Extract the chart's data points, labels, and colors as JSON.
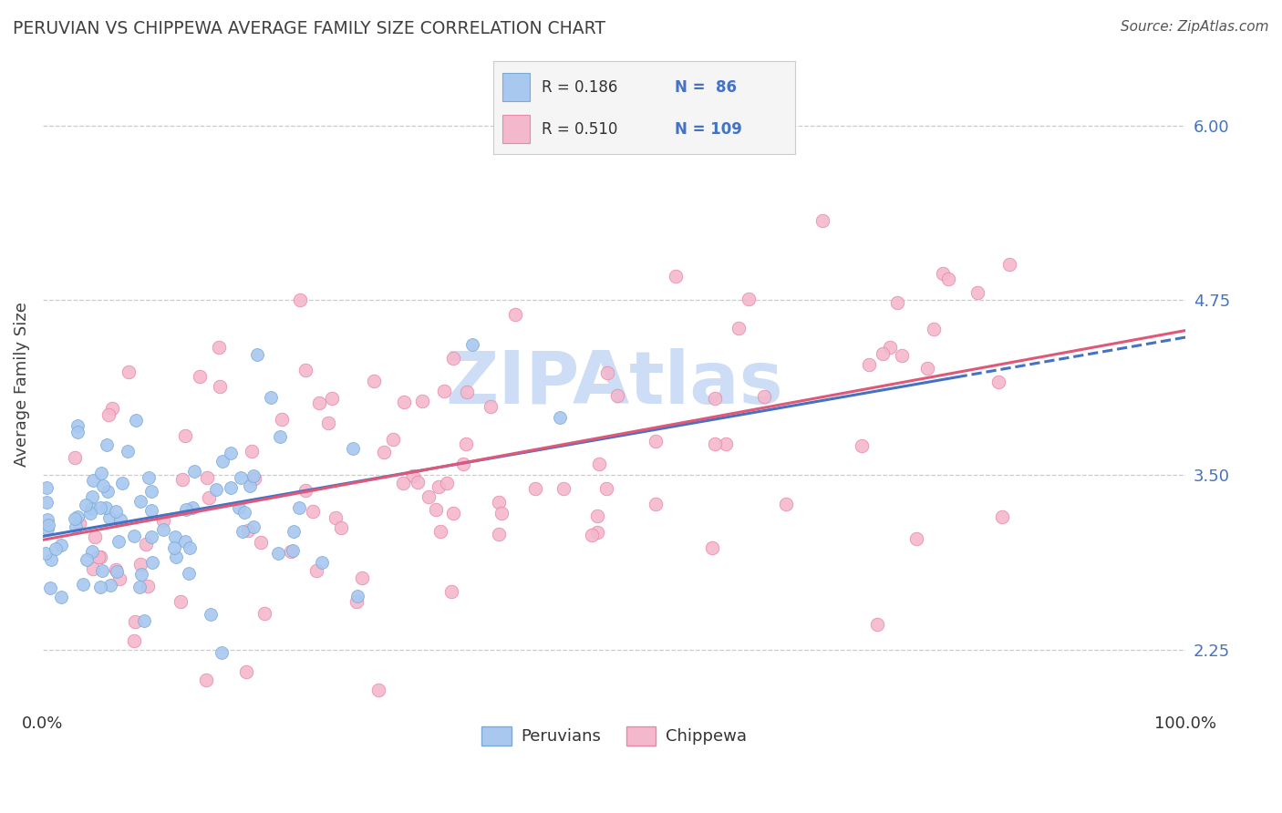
{
  "title": "PERUVIAN VS CHIPPEWA AVERAGE FAMILY SIZE CORRELATION CHART",
  "source_text": "Source: ZipAtlas.com",
  "ylabel": "Average Family Size",
  "xlim": [
    0.0,
    1.0
  ],
  "ylim": [
    1.85,
    6.45
  ],
  "yticks": [
    2.25,
    3.5,
    4.75,
    6.0
  ],
  "peruvian_color": "#a8c8f0",
  "peruvian_edge_color": "#7aaad8",
  "chippewa_color": "#f4b8cc",
  "chippewa_edge_color": "#e888a8",
  "peruvian_line_color": "#4472c4",
  "chippewa_line_color": "#e05878",
  "peruvian_R": 0.186,
  "peruvian_N": 86,
  "chippewa_R": 0.51,
  "chippewa_N": 109,
  "legend_label_peruvians": "Peruvians",
  "legend_label_chippewa": "Chippewa",
  "background_color": "#ffffff",
  "grid_color": "#cccccc",
  "axis_label_color": "#4472c4",
  "title_color": "#404040",
  "watermark_color": "#ccddf5",
  "legend_bg_color": "#f5f5f5",
  "legend_border_color": "#cccccc"
}
